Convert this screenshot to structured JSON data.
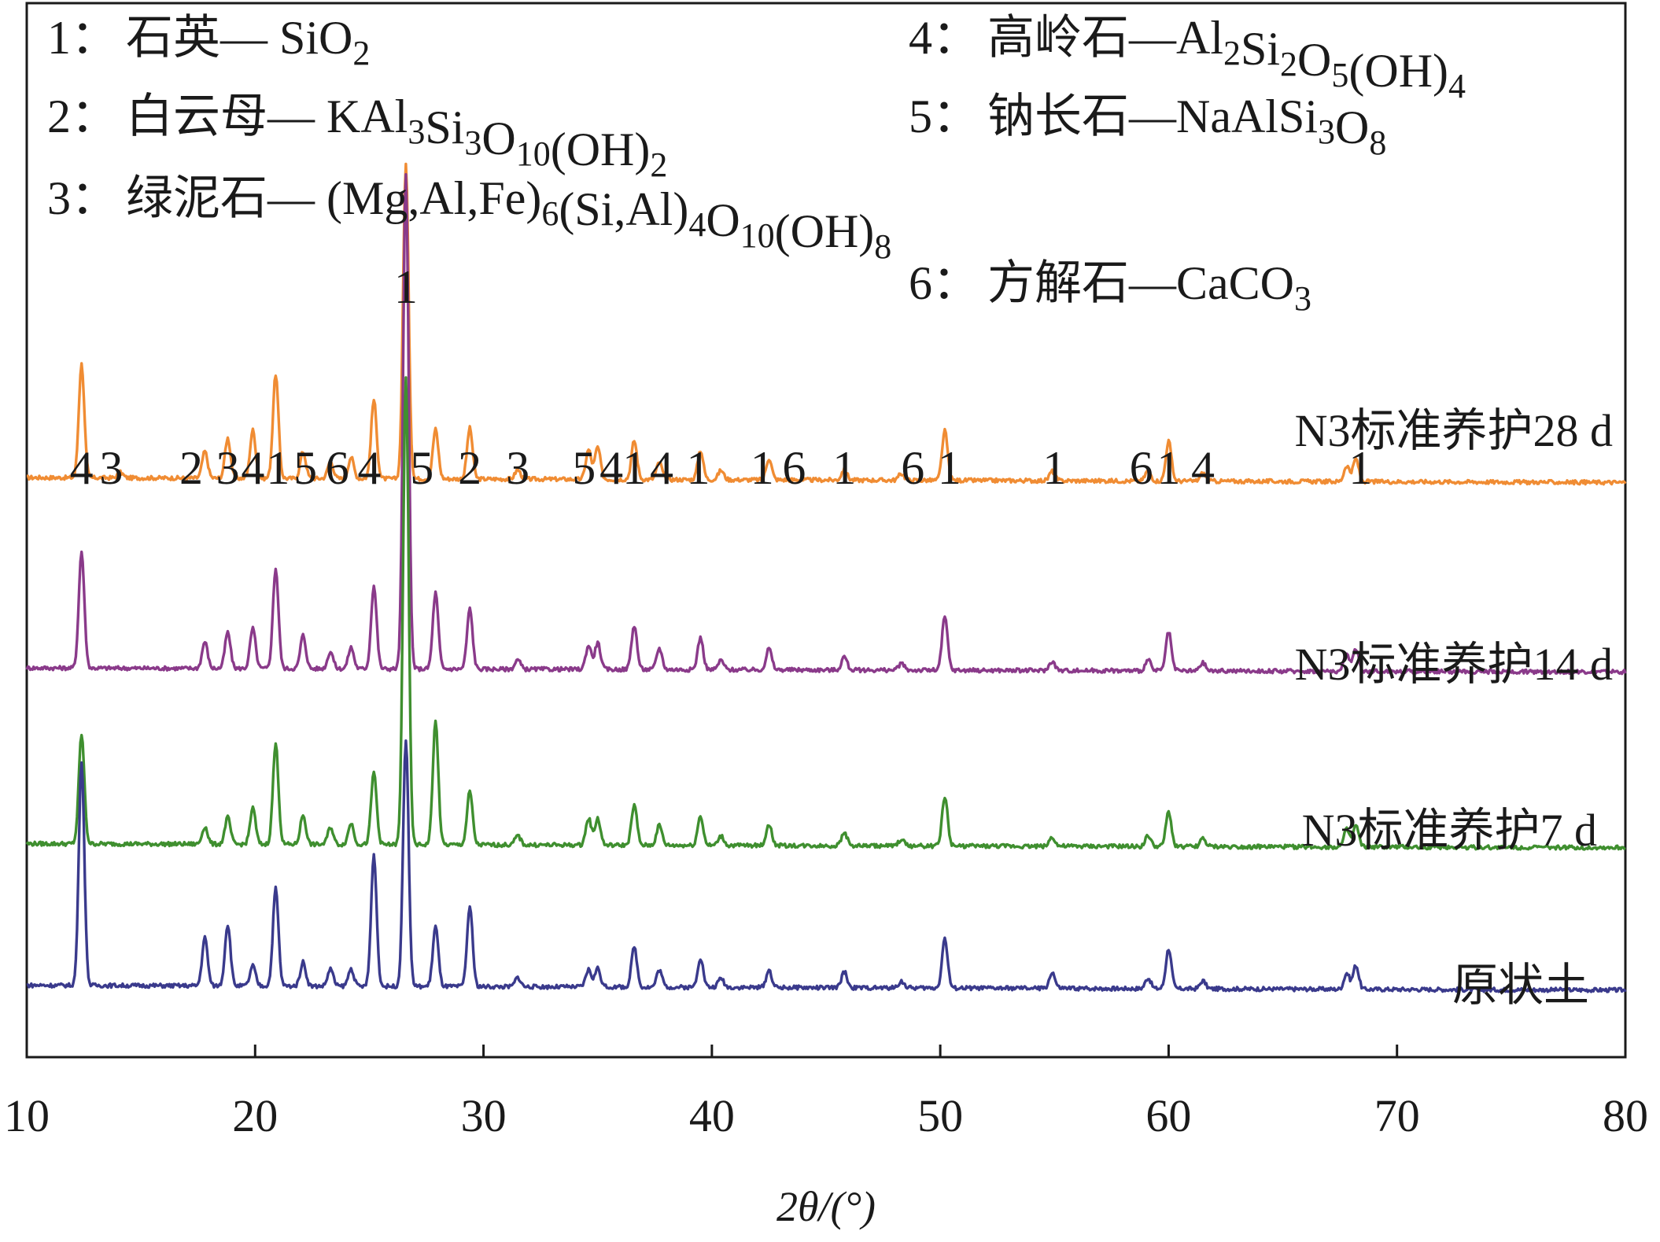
{
  "chart_data": {
    "type": "line",
    "title": "",
    "xlabel": "2θ/(°)",
    "ylabel": "",
    "xlim": [
      10,
      80
    ],
    "x_ticks": [
      10,
      20,
      30,
      40,
      50,
      60,
      70,
      80
    ],
    "grid": false,
    "legend": {
      "placement": "top",
      "entries": [
        {
          "num": "1：",
          "name": "石英",
          "formula": [
            [
              "— SiO",
              "n"
            ],
            [
              "2",
              "sub"
            ]
          ]
        },
        {
          "num": "2：",
          "name": "白云母",
          "formula": [
            [
              "— KAl",
              "n"
            ],
            [
              "3",
              "sub"
            ],
            [
              "Si",
              "n"
            ],
            [
              "3",
              "sub"
            ],
            [
              "O",
              "n"
            ],
            [
              "10",
              "sub"
            ],
            [
              "(OH)",
              "n"
            ],
            [
              "2",
              "sub"
            ]
          ]
        },
        {
          "num": "3：",
          "name": "绿泥石",
          "formula": [
            [
              "— (Mg,Al,Fe)",
              "n"
            ],
            [
              "6",
              "sub"
            ],
            [
              "(Si,Al)",
              "n"
            ],
            [
              "4",
              "sub"
            ],
            [
              "O",
              "n"
            ],
            [
              "10",
              "sub"
            ],
            [
              "(OH)",
              "n"
            ],
            [
              "8",
              "sub"
            ]
          ]
        },
        {
          "num": "4：",
          "name": "高岭石",
          "formula": [
            [
              "—Al",
              "n"
            ],
            [
              "2",
              "sub"
            ],
            [
              "Si",
              "n"
            ],
            [
              "2",
              "sub"
            ],
            [
              "O",
              "n"
            ],
            [
              "5",
              "sub"
            ],
            [
              "(OH)",
              "n"
            ],
            [
              "4",
              "sub"
            ]
          ]
        },
        {
          "num": "5：",
          "name": "钠长石",
          "formula": [
            [
              "—NaAlSi",
              "n"
            ],
            [
              "3",
              "sub"
            ],
            [
              "O",
              "n"
            ],
            [
              "8",
              "sub"
            ]
          ]
        },
        {
          "num": "6：",
          "name": "方解石",
          "formula": [
            [
              "—CaCO",
              "n"
            ],
            [
              "3",
              "sub"
            ]
          ]
        }
      ]
    },
    "series": [
      {
        "name": "N3标准养护28 d",
        "color": "#f08c33",
        "baseline": 0.34,
        "drift": 0.12,
        "peaks": [
          [
            12.4,
            0.85
          ],
          [
            14.1,
            0.04
          ],
          [
            17.8,
            0.2
          ],
          [
            18.8,
            0.3
          ],
          [
            19.9,
            0.36
          ],
          [
            20.9,
            0.78
          ],
          [
            22.1,
            0.2
          ],
          [
            23.3,
            0.13
          ],
          [
            24.2,
            0.16
          ],
          [
            25.2,
            0.59
          ],
          [
            26.6,
            2.35
          ],
          [
            27.9,
            0.37
          ],
          [
            29.4,
            0.38
          ],
          [
            31.5,
            0.07
          ],
          [
            34.6,
            0.22
          ],
          [
            35.0,
            0.24
          ],
          [
            36.6,
            0.29
          ],
          [
            37.7,
            0.13
          ],
          [
            39.5,
            0.22
          ],
          [
            40.4,
            0.07
          ],
          [
            42.5,
            0.16
          ],
          [
            45.8,
            0.08
          ],
          [
            48.3,
            0.05
          ],
          [
            50.2,
            0.37
          ],
          [
            54.9,
            0.07
          ],
          [
            59.1,
            0.08
          ],
          [
            60.0,
            0.3
          ],
          [
            61.5,
            0.06
          ],
          [
            67.8,
            0.12
          ],
          [
            68.2,
            0.17
          ]
        ],
        "labels": [
          {
            "x": 12.4,
            "t": "4"
          },
          {
            "x": 13.7,
            "t": "3"
          },
          {
            "x": 17.2,
            "t": "2"
          },
          {
            "x": 18.8,
            "t": "3"
          },
          {
            "x": 19.9,
            "t": "4"
          },
          {
            "x": 21.0,
            "t": "1"
          },
          {
            "x": 22.2,
            "t": "5"
          },
          {
            "x": 23.6,
            "t": "6"
          },
          {
            "x": 25.0,
            "t": "4"
          },
          {
            "x": 27.3,
            "t": "5"
          },
          {
            "x": 29.4,
            "t": "2"
          },
          {
            "x": 31.5,
            "t": "3"
          },
          {
            "x": 34.4,
            "t": "5"
          },
          {
            "x": 35.6,
            "t": "4"
          },
          {
            "x": 36.6,
            "t": "1"
          },
          {
            "x": 37.8,
            "t": "4"
          },
          {
            "x": 39.4,
            "t": "1"
          },
          {
            "x": 42.2,
            "t": "1"
          },
          {
            "x": 43.6,
            "t": "6"
          },
          {
            "x": 45.8,
            "t": "1"
          },
          {
            "x": 48.8,
            "t": "6"
          },
          {
            "x": 50.4,
            "t": "1"
          },
          {
            "x": 55.0,
            "t": "1"
          },
          {
            "x": 58.8,
            "t": "6"
          },
          {
            "x": 60.0,
            "t": "1"
          },
          {
            "x": 61.5,
            "t": "4"
          },
          {
            "x": 68.4,
            "t": "1"
          }
        ]
      },
      {
        "name": "N3标准养护14 d",
        "color": "#8a3a8a",
        "baseline": 0.24,
        "drift": 0.1,
        "peaks": [
          [
            12.4,
            0.87
          ],
          [
            17.8,
            0.2
          ],
          [
            18.8,
            0.27
          ],
          [
            19.9,
            0.3
          ],
          [
            20.9,
            0.75
          ],
          [
            22.1,
            0.25
          ],
          [
            23.3,
            0.13
          ],
          [
            24.2,
            0.16
          ],
          [
            25.2,
            0.62
          ],
          [
            26.6,
            3.7
          ],
          [
            27.9,
            0.57
          ],
          [
            29.4,
            0.45
          ],
          [
            31.5,
            0.07
          ],
          [
            34.6,
            0.18
          ],
          [
            35.0,
            0.2
          ],
          [
            36.6,
            0.33
          ],
          [
            37.7,
            0.16
          ],
          [
            39.5,
            0.24
          ],
          [
            40.4,
            0.07
          ],
          [
            42.5,
            0.16
          ],
          [
            45.8,
            0.1
          ],
          [
            48.3,
            0.05
          ],
          [
            50.2,
            0.4
          ],
          [
            54.9,
            0.07
          ],
          [
            59.1,
            0.08
          ],
          [
            60.0,
            0.29
          ],
          [
            61.5,
            0.06
          ],
          [
            67.8,
            0.13
          ],
          [
            68.2,
            0.17
          ]
        ],
        "labels": []
      },
      {
        "name": "N3标准养护7 d",
        "color": "#3f8f2f",
        "baseline": 0.22,
        "drift": 0.1,
        "peaks": [
          [
            12.4,
            0.82
          ],
          [
            17.8,
            0.13
          ],
          [
            18.8,
            0.2
          ],
          [
            19.9,
            0.27
          ],
          [
            20.9,
            0.75
          ],
          [
            22.1,
            0.22
          ],
          [
            23.3,
            0.13
          ],
          [
            24.2,
            0.16
          ],
          [
            25.2,
            0.54
          ],
          [
            26.6,
            3.5
          ],
          [
            27.9,
            0.92
          ],
          [
            29.4,
            0.4
          ],
          [
            31.5,
            0.07
          ],
          [
            34.6,
            0.2
          ],
          [
            35.0,
            0.2
          ],
          [
            36.6,
            0.3
          ],
          [
            37.7,
            0.15
          ],
          [
            39.5,
            0.22
          ],
          [
            40.4,
            0.07
          ],
          [
            42.5,
            0.16
          ],
          [
            45.8,
            0.1
          ],
          [
            48.3,
            0.05
          ],
          [
            50.2,
            0.37
          ],
          [
            54.9,
            0.07
          ],
          [
            59.1,
            0.08
          ],
          [
            60.0,
            0.26
          ],
          [
            61.5,
            0.06
          ],
          [
            67.8,
            0.13
          ],
          [
            68.2,
            0.16
          ]
        ],
        "labels": []
      },
      {
        "name": "原状土",
        "color": "#3a3a8c",
        "baseline": 0.22,
        "drift": 0.12,
        "peaks": [
          [
            12.4,
            1.68
          ],
          [
            17.8,
            0.36
          ],
          [
            18.8,
            0.46
          ],
          [
            19.9,
            0.15
          ],
          [
            20.9,
            0.73
          ],
          [
            22.1,
            0.18
          ],
          [
            23.3,
            0.13
          ],
          [
            24.2,
            0.13
          ],
          [
            25.2,
            0.98
          ],
          [
            26.6,
            1.85
          ],
          [
            27.9,
            0.45
          ],
          [
            29.4,
            0.6
          ],
          [
            31.5,
            0.07
          ],
          [
            34.6,
            0.13
          ],
          [
            35.0,
            0.14
          ],
          [
            36.6,
            0.3
          ],
          [
            37.7,
            0.13
          ],
          [
            39.5,
            0.22
          ],
          [
            40.4,
            0.07
          ],
          [
            42.5,
            0.13
          ],
          [
            45.8,
            0.12
          ],
          [
            48.3,
            0.05
          ],
          [
            50.2,
            0.37
          ],
          [
            54.9,
            0.12
          ],
          [
            59.1,
            0.08
          ],
          [
            60.0,
            0.3
          ],
          [
            61.5,
            0.06
          ],
          [
            67.8,
            0.12
          ],
          [
            68.2,
            0.18
          ]
        ],
        "labels": []
      }
    ]
  }
}
